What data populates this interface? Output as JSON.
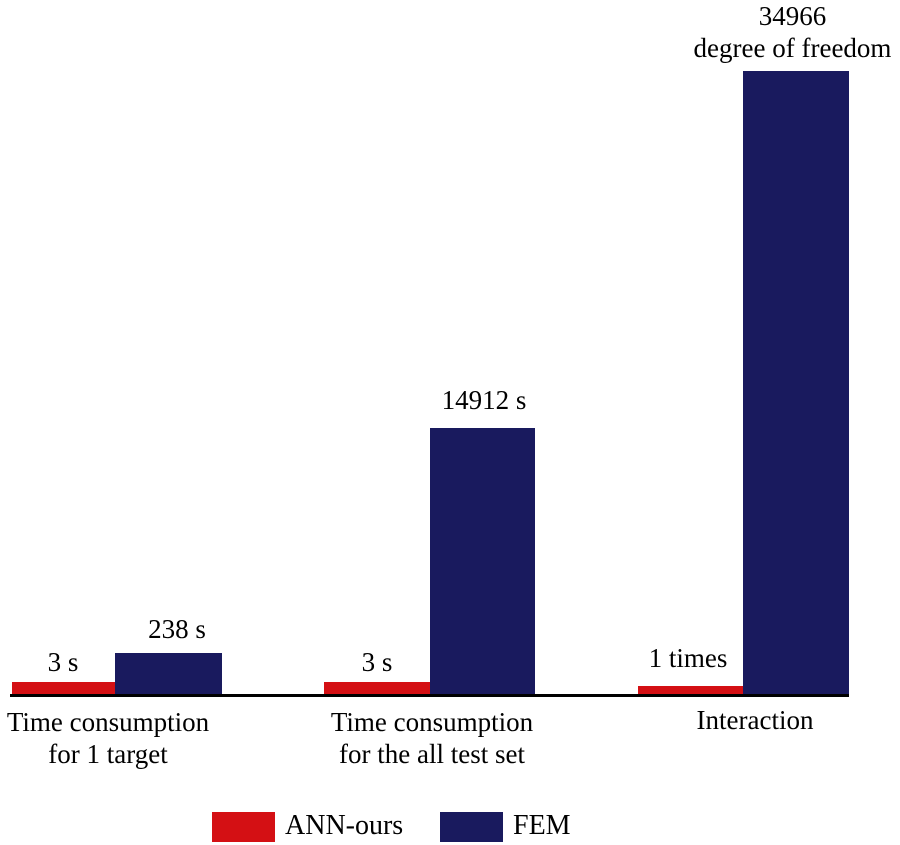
{
  "chart_data": {
    "type": "bar",
    "categories": [
      "Time consumption for 1 target",
      "Time consumption for the all test set",
      "Interaction"
    ],
    "series": [
      {
        "name": "ANN-ours",
        "color": "#d41014",
        "values": [
          3,
          3,
          1
        ],
        "value_labels": [
          "3 s",
          "3 s",
          "1 times"
        ]
      },
      {
        "name": "FEM",
        "color": "#191a5e",
        "values": [
          238,
          14912,
          34966
        ],
        "value_labels": [
          "238 s",
          "14912 s",
          "34966 degree of freedom"
        ]
      }
    ],
    "title": "",
    "xlabel": "",
    "ylabel": "",
    "grid": false,
    "y_axis_shown": false,
    "legend_position": "bottom"
  },
  "colors": {
    "ann": "#d41014",
    "fem": "#191a5e",
    "axis": "#000000"
  },
  "groups": [
    {
      "ann_value_label": "3 s",
      "fem_value_label": "238 s",
      "category_line1": "Time consumption",
      "category_line2": "for 1 target"
    },
    {
      "ann_value_label": "3 s",
      "fem_value_label": "14912 s",
      "category_line1": "Time consumption",
      "category_line2": "for the all test set"
    },
    {
      "ann_value_label": "1 times",
      "fem_value_label_line1": "34966",
      "fem_value_label_line2": "degree of freedom",
      "category_line1": "Interaction"
    }
  ],
  "legend": {
    "items": [
      {
        "label": "ANN-ours",
        "color": "#d41014"
      },
      {
        "label": "FEM",
        "color": "#191a5e"
      }
    ]
  }
}
